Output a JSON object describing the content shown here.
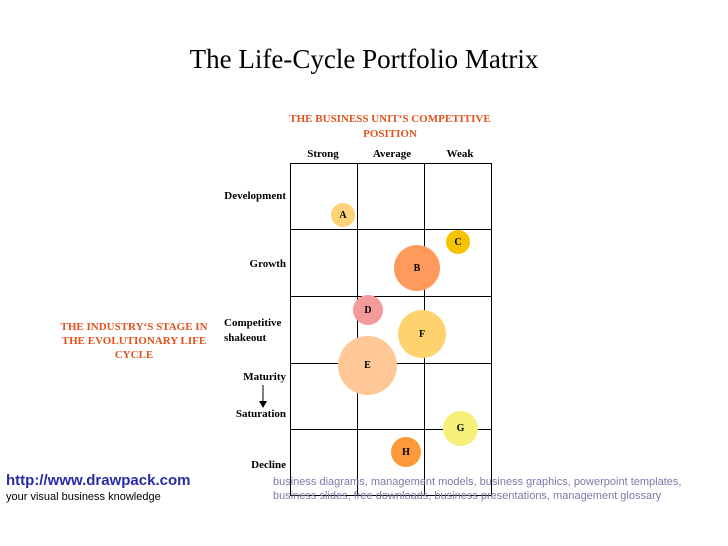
{
  "title": "The Life-Cycle Portfolio Matrix",
  "top_heading": "THE BUSINESS UNIT‘S COMPETITIVE POSITION",
  "columns": [
    "Strong",
    "Average",
    "Weak"
  ],
  "side_heading": "THE INDUSTRY‘S STAGE IN THE EVOLUTIONARY LIFE CYCLE",
  "rows": [
    "Development",
    "Growth",
    "Competitive shakeout",
    "Maturity",
    "Saturation",
    "Decline"
  ],
  "bubbles": [
    {
      "label": "A",
      "color": "#ffd27a"
    },
    {
      "label": "B",
      "color": "#ff9a5c"
    },
    {
      "label": "C",
      "color": "#f5c400"
    },
    {
      "label": "D",
      "color": "#f59a9a"
    },
    {
      "label": "E",
      "color": "#ffc896"
    },
    {
      "label": "F",
      "color": "#ffd26e"
    },
    {
      "label": "G",
      "color": "#f5f07a"
    },
    {
      "label": "H",
      "color": "#ff9a3c"
    }
  ],
  "footer": {
    "link": "http://www.drawpack.com",
    "tagline": "your visual business knowledge",
    "description": "business diagrams, management models, business graphics, powerpoint templates, business slides, free downloads, business presentations, management glossary"
  }
}
